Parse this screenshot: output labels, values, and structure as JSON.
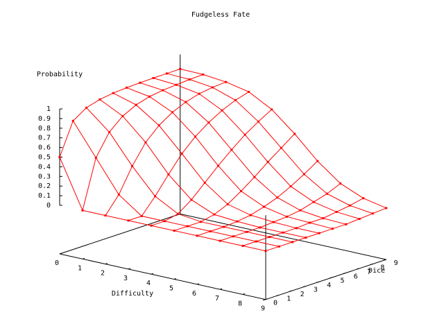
{
  "chart_data": {
    "type": "surface",
    "title": "Fudgeless Fate",
    "xlabel": "Difficulty",
    "ylabel": "Dice",
    "zlabel": "Probability",
    "x_ticks": [
      "0",
      "1",
      "2",
      "3",
      "4",
      "5",
      "6",
      "7",
      "8",
      "9"
    ],
    "y_ticks": [
      "0",
      "1",
      "2",
      "3",
      "4",
      "5",
      "6",
      "7",
      "8",
      "9"
    ],
    "z_ticks": [
      "0",
      "0.1",
      "0.2",
      "0.3",
      "0.4",
      "0.5",
      "0.6",
      "0.7",
      "0.8",
      "0.9",
      "1"
    ],
    "xlim": [
      0,
      9
    ],
    "ylim": [
      0,
      9
    ],
    "zlim": [
      0,
      1
    ],
    "grid": false,
    "surface_color": "#ff0000",
    "x": [
      0,
      1,
      2,
      3,
      4,
      5,
      6,
      7,
      8,
      9
    ],
    "y": [
      0,
      1,
      2,
      3,
      4,
      5,
      6,
      7,
      8,
      9
    ],
    "z": [
      [
        0.5,
        0.0,
        0.0,
        0.0,
        0.0,
        0.0,
        0.0,
        0.0,
        0.0,
        0.0
      ],
      [
        0.83,
        0.5,
        0.17,
        0.0,
        0.0,
        0.0,
        0.0,
        0.0,
        0.0,
        0.0
      ],
      [
        0.92,
        0.72,
        0.42,
        0.16,
        0.03,
        0.0,
        0.0,
        0.0,
        0.0,
        0.0
      ],
      [
        0.96,
        0.84,
        0.62,
        0.34,
        0.13,
        0.03,
        0.01,
        0.0,
        0.0,
        0.0
      ],
      [
        0.98,
        0.91,
        0.75,
        0.51,
        0.26,
        0.09,
        0.03,
        0.01,
        0.0,
        0.0
      ],
      [
        0.99,
        0.95,
        0.84,
        0.64,
        0.39,
        0.18,
        0.07,
        0.02,
        0.01,
        0.0
      ],
      [
        0.995,
        0.97,
        0.9,
        0.74,
        0.51,
        0.28,
        0.12,
        0.04,
        0.01,
        0.0
      ],
      [
        0.998,
        0.98,
        0.94,
        0.82,
        0.62,
        0.39,
        0.19,
        0.08,
        0.03,
        0.01
      ],
      [
        0.999,
        0.99,
        0.96,
        0.88,
        0.71,
        0.49,
        0.27,
        0.12,
        0.05,
        0.02
      ],
      [
        1.0,
        0.995,
        0.97,
        0.92,
        0.79,
        0.59,
        0.36,
        0.18,
        0.08,
        0.03
      ]
    ]
  }
}
